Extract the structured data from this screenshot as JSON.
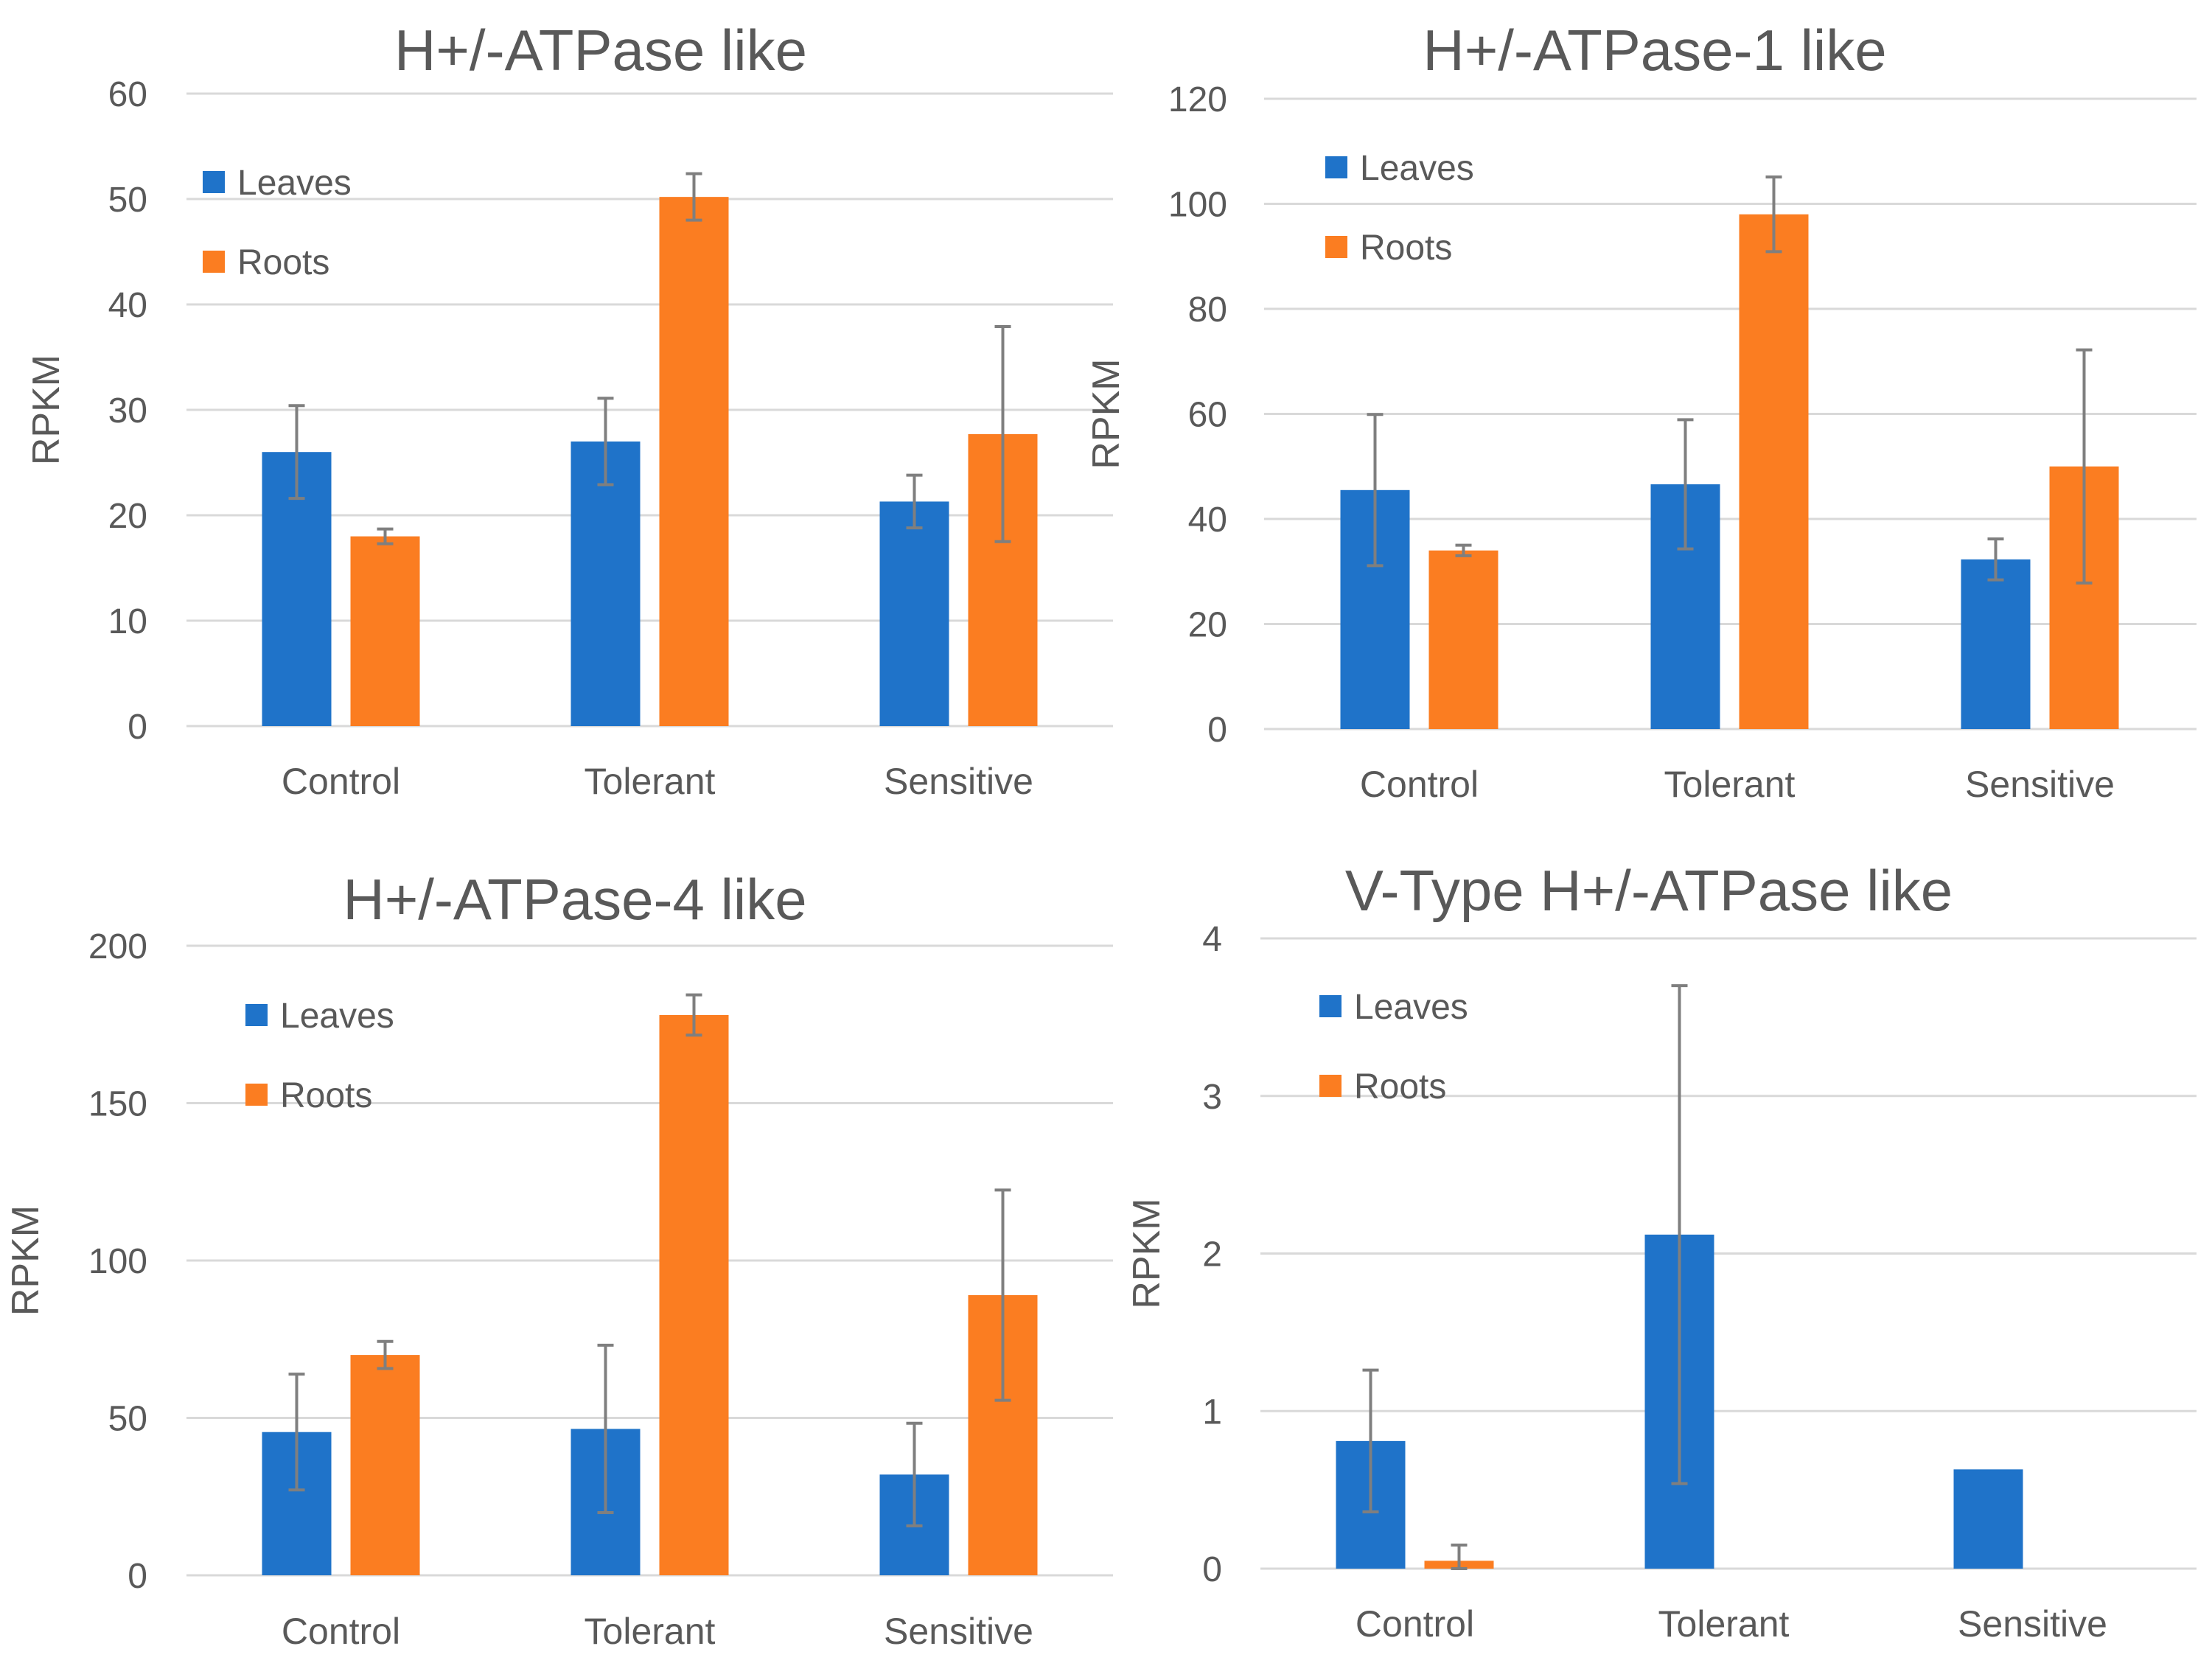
{
  "figure": {
    "series_names": [
      "Leaves",
      "Roots"
    ],
    "colors": {
      "Leaves": "#1f73c9",
      "Roots": "#fb7d21",
      "grid": "#d9d9d9",
      "text": "#595959",
      "errorbar": "#7f7f7f"
    }
  },
  "chart_data": [
    {
      "type": "bar",
      "title": "H+/-ATPase like",
      "xlabel": "",
      "ylabel": "RPKM",
      "categories": [
        "Control",
        "Tolerant",
        "Sensitive"
      ],
      "ylim": [
        0,
        60
      ],
      "yticks": [
        0,
        10,
        20,
        30,
        40,
        50,
        60
      ],
      "ytick_labels": [
        "0",
        "10",
        "20",
        "30",
        "40",
        "50",
        "60"
      ],
      "legend_position": "top-left",
      "grid": true,
      "series": [
        {
          "name": "Leaves",
          "values": [
            26,
            27,
            21.3
          ],
          "errors": [
            4.4,
            4.1,
            2.5
          ]
        },
        {
          "name": "Roots",
          "values": [
            18,
            50.2,
            27.7
          ],
          "errors": [
            0.7,
            2.2,
            10.2
          ]
        }
      ]
    },
    {
      "type": "bar",
      "title": "H+/-ATPase-1 like",
      "xlabel": "",
      "ylabel": "RPKM",
      "categories": [
        "Control",
        "Tolerant",
        "Sensitive"
      ],
      "ylim": [
        0,
        120
      ],
      "yticks": [
        0,
        20,
        40,
        60,
        80,
        100,
        120
      ],
      "ytick_labels": [
        "0",
        "20",
        "40",
        "60",
        "80",
        "100",
        "120"
      ],
      "legend_position": "top-left",
      "grid": true,
      "series": [
        {
          "name": "Leaves",
          "values": [
            45.5,
            46.6,
            32.3
          ],
          "errors": [
            14.4,
            12.3,
            3.9
          ]
        },
        {
          "name": "Roots",
          "values": [
            34,
            98,
            50
          ],
          "errors": [
            1.0,
            7.1,
            22.2
          ]
        }
      ]
    },
    {
      "type": "bar",
      "title": "H+/-ATPase-4 like",
      "xlabel": "",
      "ylabel": "RPKM",
      "categories": [
        "Control",
        "Tolerant",
        "Sensitive"
      ],
      "ylim": [
        0,
        200
      ],
      "yticks": [
        0,
        50,
        100,
        150,
        200
      ],
      "ytick_labels": [
        "0",
        "50",
        "100",
        "150",
        "200"
      ],
      "legend_position": "top-left",
      "grid": true,
      "series": [
        {
          "name": "Leaves",
          "values": [
            45.5,
            46.5,
            32
          ],
          "errors": [
            18.4,
            26.6,
            16.3
          ]
        },
        {
          "name": "Roots",
          "values": [
            70,
            178,
            89
          ],
          "errors": [
            4.3,
            6.4,
            33.4
          ]
        }
      ]
    },
    {
      "type": "bar",
      "title": "V-Type H+/-ATPase like",
      "xlabel": "",
      "ylabel": "RPKM",
      "categories": [
        "Control",
        "Tolerant",
        "Sensitive"
      ],
      "ylim": [
        0,
        4
      ],
      "yticks": [
        0,
        1,
        2,
        3,
        4
      ],
      "ytick_labels": [
        "0",
        "1",
        "2",
        "3",
        "4"
      ],
      "legend_position": "top-left",
      "grid": true,
      "series": [
        {
          "name": "Leaves",
          "values": [
            0.81,
            2.12,
            0.63
          ],
          "errors": [
            0.45,
            1.58,
            0.0
          ]
        },
        {
          "name": "Roots",
          "values": [
            0.05,
            0.0,
            0.0
          ],
          "errors": [
            0.1,
            0.0,
            0.0
          ]
        }
      ]
    }
  ]
}
